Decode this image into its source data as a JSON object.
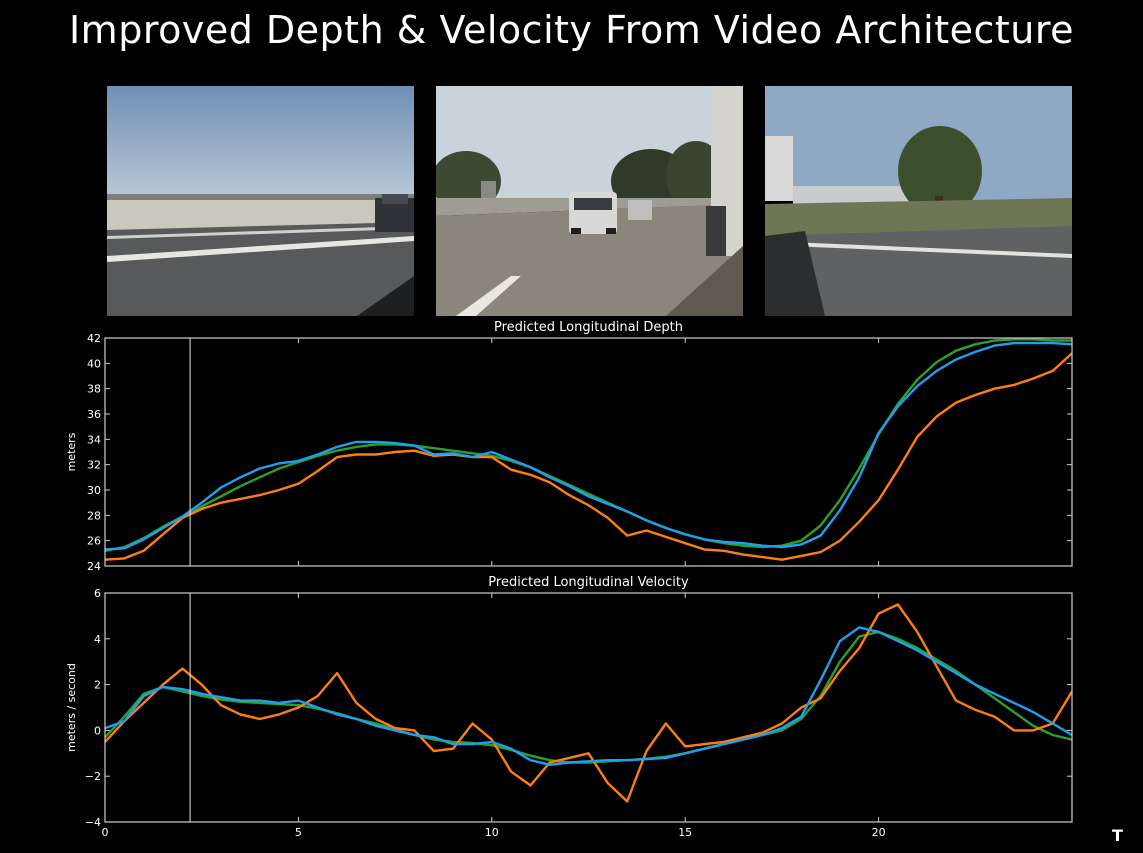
{
  "slide": {
    "title": "Improved Depth & Velocity From Video Architecture",
    "logo": "T"
  },
  "camera_views": [
    {
      "name": "left-repeater-camera"
    },
    {
      "name": "front-camera"
    },
    {
      "name": "right-repeater-camera"
    }
  ],
  "colors": {
    "background": "#000000",
    "axes": "#cfcfcf",
    "ground_truth": "#2ca02c",
    "radar": "#ff7f0e",
    "vision": "#1f9ff0"
  },
  "chart_data": [
    {
      "type": "line",
      "title": "Predicted Longitudinal Depth",
      "xlabel": "",
      "ylabel": "meters",
      "xlim": [
        0,
        25
      ],
      "ylim": [
        24,
        42
      ],
      "xticks": [
        0,
        5,
        10,
        15,
        20
      ],
      "yticks": [
        24,
        26,
        28,
        30,
        32,
        34,
        36,
        38,
        40,
        42
      ],
      "cursor_x": 2.2,
      "grid": false,
      "series": [
        {
          "color": "#2ca02c",
          "x": [
            0,
            0.5,
            1,
            1.5,
            2,
            2.5,
            3,
            3.5,
            4,
            4.5,
            5,
            5.5,
            6,
            6.5,
            7,
            7.5,
            8,
            8.5,
            9,
            9.5,
            10,
            10.5,
            11,
            11.5,
            12,
            12.5,
            13,
            13.5,
            14,
            14.5,
            15,
            15.5,
            16,
            16.5,
            17,
            17.5,
            18,
            18.5,
            19,
            19.5,
            20,
            20.5,
            21,
            21.5,
            22,
            22.5,
            23,
            23.5,
            24,
            24.5,
            25
          ],
          "y": [
            25.2,
            25.5,
            26.2,
            27.1,
            27.9,
            28.7,
            29.5,
            30.3,
            31.0,
            31.7,
            32.2,
            32.7,
            33.1,
            33.4,
            33.6,
            33.6,
            33.5,
            33.3,
            33.1,
            32.9,
            32.7,
            32.3,
            31.8,
            31.1,
            30.4,
            29.7,
            29.0,
            28.3,
            27.6,
            27.0,
            26.5,
            26.1,
            25.8,
            25.6,
            25.5,
            25.6,
            26.0,
            27.2,
            29.2,
            31.7,
            34.4,
            36.8,
            38.7,
            40.1,
            41.0,
            41.5,
            41.8,
            41.9,
            41.9,
            41.8,
            41.8
          ]
        },
        {
          "color": "#ff7f0e",
          "x": [
            0,
            0.5,
            1,
            1.5,
            2,
            2.5,
            3,
            3.5,
            4,
            4.5,
            5,
            5.5,
            6,
            6.5,
            7,
            7.5,
            8,
            8.5,
            9,
            9.5,
            10,
            10.5,
            11,
            11.5,
            12,
            12.5,
            13,
            13.5,
            14,
            14.5,
            15,
            15.5,
            16,
            16.5,
            17,
            17.5,
            18,
            18.5,
            19,
            19.5,
            20,
            20.5,
            21,
            21.5,
            22,
            22.5,
            23,
            23.5,
            24,
            24.5,
            25
          ],
          "y": [
            24.5,
            24.6,
            25.2,
            26.5,
            27.8,
            28.5,
            29.0,
            29.3,
            29.6,
            30.0,
            30.5,
            31.5,
            32.6,
            32.8,
            32.8,
            33.0,
            33.1,
            32.7,
            32.8,
            32.6,
            32.6,
            31.6,
            31.2,
            30.6,
            29.6,
            28.8,
            27.8,
            26.4,
            26.8,
            26.3,
            25.8,
            25.3,
            25.2,
            24.9,
            24.7,
            24.5,
            24.8,
            25.1,
            26.0,
            27.5,
            29.2,
            31.6,
            34.2,
            35.8,
            36.9,
            37.5,
            38.0,
            38.3,
            38.8,
            39.4,
            40.8
          ]
        },
        {
          "color": "#1f9ff0",
          "x": [
            0,
            0.5,
            1,
            1.5,
            2,
            2.5,
            3,
            3.5,
            4,
            4.5,
            5,
            5.5,
            6,
            6.5,
            7,
            7.5,
            8,
            8.5,
            9,
            9.5,
            10,
            10.5,
            11,
            11.5,
            12,
            12.5,
            13,
            13.5,
            14,
            14.5,
            15,
            15.5,
            16,
            16.5,
            17,
            17.5,
            18,
            18.5,
            19,
            19.5,
            20,
            20.5,
            21,
            21.5,
            22,
            22.5,
            23,
            23.5,
            24,
            24.5,
            25
          ],
          "y": [
            25.3,
            25.4,
            26.1,
            27.0,
            27.9,
            29.0,
            30.2,
            31.0,
            31.7,
            32.1,
            32.3,
            32.8,
            33.4,
            33.8,
            33.8,
            33.7,
            33.5,
            32.8,
            32.9,
            32.6,
            33.0,
            32.4,
            31.8,
            31.0,
            30.3,
            29.5,
            28.9,
            28.3,
            27.6,
            27.0,
            26.5,
            26.1,
            25.9,
            25.8,
            25.6,
            25.5,
            25.7,
            26.4,
            28.4,
            31.0,
            34.5,
            36.6,
            38.2,
            39.4,
            40.3,
            40.9,
            41.4,
            41.6,
            41.6,
            41.6,
            41.5
          ]
        }
      ]
    },
    {
      "type": "line",
      "title": "Predicted Longitudinal Velocity",
      "xlabel": "",
      "ylabel": "meters / second",
      "xlim": [
        0,
        25
      ],
      "ylim": [
        -4,
        6
      ],
      "xticks": [
        0,
        5,
        10,
        15,
        20
      ],
      "yticks": [
        -4,
        -2,
        0,
        2,
        4,
        6
      ],
      "cursor_x": 2.2,
      "grid": false,
      "series": [
        {
          "color": "#2ca02c",
          "x": [
            0,
            0.5,
            1,
            1.5,
            2,
            2.5,
            3,
            3.5,
            4,
            4.5,
            5,
            5.5,
            6,
            6.5,
            7,
            7.5,
            8,
            8.5,
            9,
            9.5,
            10,
            10.5,
            11,
            11.5,
            12,
            12.5,
            13,
            13.5,
            14,
            14.5,
            15,
            15.5,
            16,
            16.5,
            17,
            17.5,
            18,
            18.5,
            19,
            19.5,
            20,
            20.5,
            21,
            21.5,
            22,
            22.5,
            23,
            23.5,
            24,
            24.5,
            25
          ],
          "y": [
            -0.3,
            0.6,
            1.6,
            1.9,
            1.7,
            1.5,
            1.35,
            1.25,
            1.2,
            1.15,
            1.1,
            0.95,
            0.75,
            0.5,
            0.3,
            0.05,
            -0.2,
            -0.4,
            -0.5,
            -0.55,
            -0.65,
            -0.85,
            -1.1,
            -1.3,
            -1.4,
            -1.4,
            -1.35,
            -1.3,
            -1.25,
            -1.15,
            -1.0,
            -0.8,
            -0.6,
            -0.4,
            -0.2,
            0.0,
            0.5,
            1.5,
            3.0,
            4.1,
            4.3,
            4.0,
            3.6,
            3.1,
            2.6,
            2.0,
            1.4,
            0.8,
            0.2,
            -0.2,
            -0.4
          ]
        },
        {
          "color": "#ff7f0e",
          "x": [
            0,
            0.5,
            1,
            1.5,
            2,
            2.5,
            3,
            3.5,
            4,
            4.5,
            5,
            5.5,
            6,
            6.5,
            7,
            7.5,
            8,
            8.5,
            9,
            9.5,
            10,
            10.5,
            11,
            11.5,
            12,
            12.5,
            13,
            13.5,
            14,
            14.5,
            15,
            15.5,
            16,
            16.5,
            17,
            17.5,
            18,
            18.5,
            19,
            19.5,
            20,
            20.5,
            21,
            21.5,
            22,
            22.5,
            23,
            23.5,
            24,
            24.5,
            25
          ],
          "y": [
            -0.5,
            0.4,
            1.2,
            2.0,
            2.7,
            2.0,
            1.1,
            0.7,
            0.5,
            0.7,
            1.0,
            1.5,
            2.5,
            1.2,
            0.5,
            0.1,
            0.0,
            -0.9,
            -0.8,
            0.3,
            -0.4,
            -1.8,
            -2.4,
            -1.4,
            -1.2,
            -1.0,
            -2.3,
            -3.1,
            -0.9,
            0.3,
            -0.7,
            -0.6,
            -0.5,
            -0.3,
            -0.1,
            0.3,
            1.0,
            1.4,
            2.6,
            3.6,
            5.1,
            5.5,
            4.3,
            2.8,
            1.3,
            0.9,
            0.6,
            0.0,
            0.0,
            0.3,
            1.7
          ]
        },
        {
          "color": "#1f9ff0",
          "x": [
            0,
            0.5,
            1,
            1.5,
            2,
            2.5,
            3,
            3.5,
            4,
            4.5,
            5,
            5.5,
            6,
            6.5,
            7,
            7.5,
            8,
            8.5,
            9,
            9.5,
            10,
            10.5,
            11,
            11.5,
            12,
            12.5,
            13,
            13.5,
            14,
            14.5,
            15,
            15.5,
            16,
            16.5,
            17,
            17.5,
            18,
            18.5,
            19,
            19.5,
            20,
            20.5,
            21,
            21.5,
            22,
            22.5,
            23,
            23.5,
            24,
            24.5,
            25
          ],
          "y": [
            0.1,
            0.4,
            1.5,
            1.9,
            1.8,
            1.6,
            1.45,
            1.3,
            1.3,
            1.2,
            1.3,
            1.0,
            0.7,
            0.5,
            0.2,
            0.0,
            -0.2,
            -0.3,
            -0.6,
            -0.6,
            -0.5,
            -0.8,
            -1.3,
            -1.5,
            -1.4,
            -1.35,
            -1.3,
            -1.3,
            -1.25,
            -1.2,
            -1.0,
            -0.8,
            -0.6,
            -0.4,
            -0.2,
            0.1,
            0.6,
            2.2,
            3.9,
            4.5,
            4.3,
            3.9,
            3.5,
            3.0,
            2.5,
            2.0,
            1.6,
            1.2,
            0.8,
            0.3,
            -0.2
          ]
        }
      ]
    }
  ]
}
